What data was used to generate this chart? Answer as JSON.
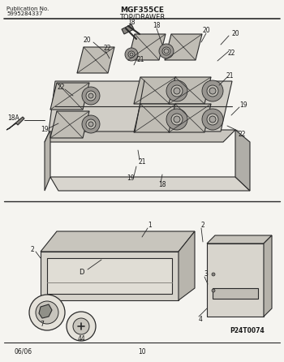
{
  "title": "MGF355CE",
  "subtitle": "TOP/DRAWER",
  "pub_no": "Publication No.",
  "pub_num": "5995284337",
  "page_num": "10",
  "date": "06/06",
  "part_ref": "P24T0074",
  "bg_color": "#f5f4f0",
  "line_color": "#2a2a2a",
  "text_color": "#1a1a1a",
  "fig_width": 3.5,
  "fig_height": 4.46,
  "dpi": 100
}
